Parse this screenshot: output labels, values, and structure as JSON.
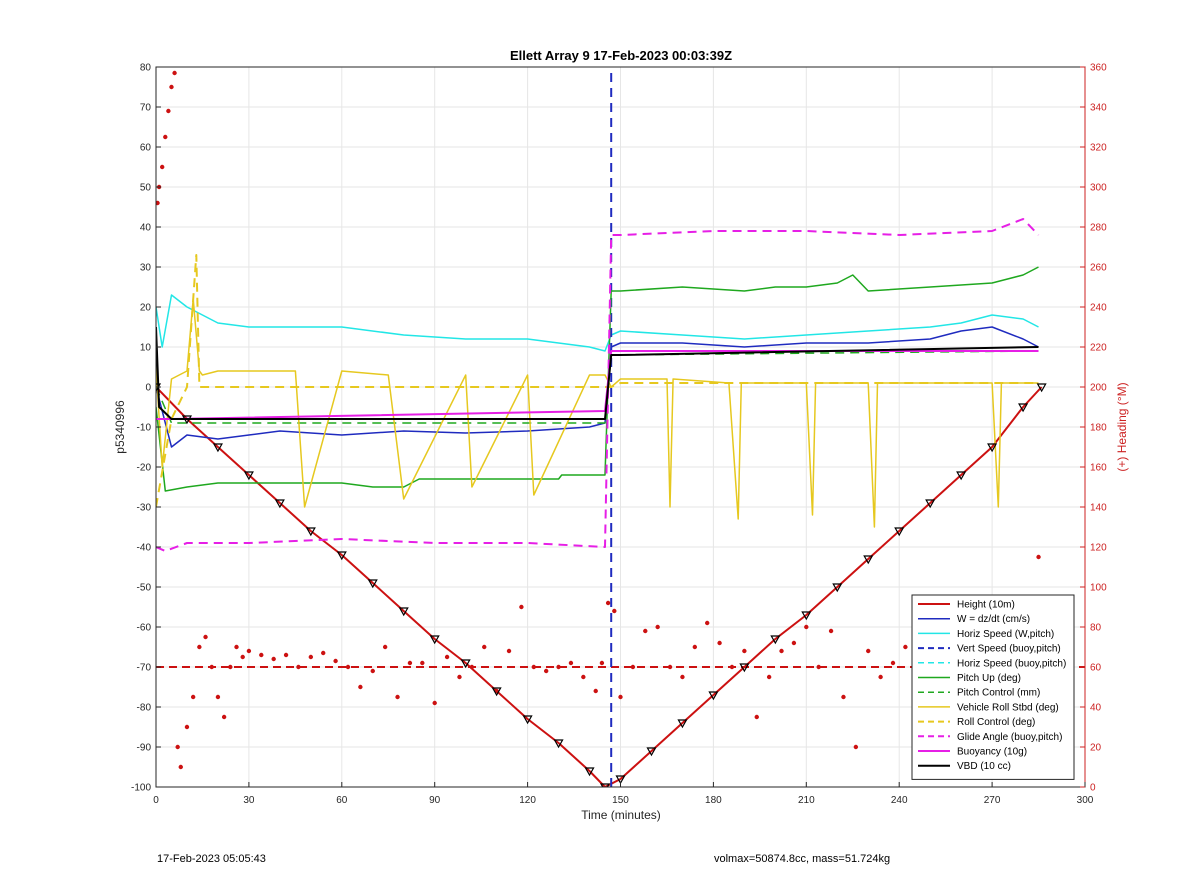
{
  "title": "Ellett Array 9 17-Feb-2023 00:03:39Z",
  "footer_left": "17-Feb-2023 05:05:43",
  "footer_right": "volmax=50874.8cc, mass=51.724kg",
  "colors": {
    "red": "#cc1111",
    "blue": "#1f2bbf",
    "cyan": "#22e6e6",
    "green": "#1fa81f",
    "yellow": "#e6c81f",
    "magenta": "#e61fe6",
    "black": "#000000"
  },
  "chart_data": {
    "type": "line",
    "title": "Ellett Array 9 17-Feb-2023 00:03:39Z",
    "xlabel": "Time (minutes)",
    "ylabel": "p5340996",
    "y2label": "(+) Heading (°M)",
    "xlim": [
      0,
      300
    ],
    "ylim": [
      -100,
      80
    ],
    "y2lim": [
      0,
      360
    ],
    "xticks": [
      0,
      30,
      60,
      90,
      120,
      150,
      180,
      210,
      240,
      270,
      300
    ],
    "yticks": [
      -100,
      -90,
      -80,
      -70,
      -60,
      -50,
      -40,
      -30,
      -20,
      -10,
      0,
      10,
      20,
      30,
      40,
      50,
      60,
      70,
      80
    ],
    "y2ticks": [
      0,
      20,
      40,
      60,
      80,
      100,
      120,
      140,
      160,
      180,
      200,
      220,
      240,
      260,
      280,
      300,
      320,
      340,
      360
    ],
    "grid": true,
    "legend_position": "bottom-right",
    "series": [
      {
        "name": "Height (10m)",
        "color": "#cc1111",
        "style": "solid",
        "width": 2,
        "x": [
          0,
          10,
          20,
          30,
          40,
          50,
          60,
          70,
          80,
          90,
          100,
          110,
          120,
          130,
          140,
          145,
          150,
          160,
          170,
          180,
          190,
          200,
          210,
          220,
          230,
          240,
          250,
          260,
          270,
          280,
          286
        ],
        "y": [
          0,
          -8,
          -15,
          -22,
          -29,
          -36,
          -42,
          -49,
          -56,
          -63,
          -69,
          -76,
          -83,
          -89,
          -96,
          -100,
          -98,
          -91,
          -84,
          -77,
          -70,
          -63,
          -57,
          -50,
          -43,
          -36,
          -29,
          -22,
          -15,
          -5,
          0
        ]
      },
      {
        "name": "W = dz/dt (cm/s)",
        "color": "#1f2bbf",
        "style": "solid",
        "width": 1.5,
        "x": [
          0,
          5,
          10,
          20,
          30,
          40,
          60,
          80,
          100,
          120,
          140,
          145,
          147,
          150,
          170,
          190,
          210,
          230,
          250,
          260,
          270,
          280,
          285
        ],
        "y": [
          0,
          -15,
          -12,
          -13,
          -12,
          -11,
          -12,
          -11,
          -11.5,
          -11,
          -10,
          -9,
          10,
          11,
          11,
          10,
          11,
          11,
          12,
          14,
          15,
          12,
          10
        ]
      },
      {
        "name": "Horiz Speed (W,pitch)",
        "color": "#22e6e6",
        "style": "solid",
        "width": 1.5,
        "x": [
          0,
          2,
          5,
          10,
          20,
          30,
          40,
          60,
          80,
          100,
          120,
          140,
          145,
          147,
          150,
          170,
          190,
          210,
          230,
          250,
          260,
          270,
          280,
          285
        ],
        "y": [
          20,
          10,
          23,
          20,
          16,
          15,
          15,
          15,
          13,
          12,
          12,
          10,
          9,
          13,
          14,
          13,
          12,
          13,
          14,
          15,
          16,
          18,
          17,
          15
        ]
      },
      {
        "name": "Vert Speed (buoy,pitch)",
        "color": "#1f2bbf",
        "style": "dashed",
        "width": 2,
        "x": [
          147,
          147
        ],
        "y": [
          -100,
          80
        ]
      },
      {
        "name": "Horiz Speed (buoy,pitch)",
        "color": "#22e6e6",
        "style": "dashed",
        "width": 1.5,
        "x": [
          0,
          1
        ],
        "y": [
          0,
          0
        ]
      },
      {
        "name": "Pitch Up (deg)",
        "color": "#1fa81f",
        "style": "solid",
        "width": 1.5,
        "x": [
          0,
          3,
          10,
          20,
          30,
          50,
          60,
          70,
          80,
          85,
          100,
          130,
          131,
          140,
          145,
          147,
          150,
          170,
          190,
          200,
          210,
          220,
          225,
          230,
          250,
          270,
          280,
          285
        ],
        "y": [
          -5,
          -26,
          -25,
          -24,
          -24,
          -24,
          -24,
          -25,
          -25,
          -23,
          -23,
          -23,
          -22,
          -22,
          -22,
          24,
          24,
          25,
          24,
          25,
          25,
          26,
          28,
          24,
          25,
          26,
          28,
          30
        ]
      },
      {
        "name": "Pitch Control (mm)",
        "color": "#1fa81f",
        "style": "dashed",
        "width": 1.5,
        "x": [
          0,
          5,
          145,
          147,
          285
        ],
        "y": [
          0,
          -9,
          -9,
          8,
          9
        ]
      },
      {
        "name": "Vehicle Roll Stbd (deg)",
        "color": "#e6c81f",
        "style": "solid",
        "width": 1.5,
        "x": [
          0,
          2,
          5,
          10,
          12,
          14,
          15,
          20,
          22,
          25,
          45,
          48,
          60,
          75,
          80,
          100,
          102,
          120,
          122,
          140,
          145,
          147,
          150,
          165,
          166,
          167,
          185,
          188,
          189,
          190,
          210,
          212,
          213,
          215,
          230,
          232,
          233,
          235,
          270,
          272,
          273,
          285
        ],
        "y": [
          5,
          -20,
          2,
          4,
          22,
          4,
          3,
          4,
          4,
          4,
          4,
          -30,
          4,
          3,
          -28,
          3,
          -25,
          3,
          -27,
          3,
          3,
          0,
          2,
          2,
          -30,
          2,
          1,
          -33,
          1,
          1,
          1,
          -32,
          1,
          1,
          1,
          -35,
          1,
          1,
          1,
          -30,
          1,
          1
        ]
      },
      {
        "name": "Roll Control (deg)",
        "color": "#e6c81f",
        "style": "dashed",
        "width": 2,
        "x": [
          0,
          5,
          10,
          13,
          14,
          20,
          30,
          60,
          90,
          120,
          145,
          147,
          150,
          200,
          250,
          285
        ],
        "y": [
          -30,
          -8,
          0,
          33,
          0,
          0,
          0,
          0,
          0,
          0,
          0,
          0,
          1,
          1,
          1,
          1
        ]
      },
      {
        "name": "Glide Angle (buoy,pitch)",
        "color": "#e61fe6",
        "style": "dashed",
        "width": 2,
        "x": [
          0,
          3,
          10,
          30,
          60,
          90,
          120,
          145,
          147,
          150,
          180,
          210,
          240,
          270,
          280,
          285
        ],
        "y": [
          -40,
          -41,
          -39,
          -39,
          -38,
          -39,
          -39,
          -40,
          38,
          38,
          39,
          39,
          38,
          39,
          42,
          38
        ]
      },
      {
        "name": "Buoyancy (10g)",
        "color": "#e61fe6",
        "style": "solid",
        "width": 2,
        "x": [
          0,
          5,
          145,
          147,
          285
        ],
        "y": [
          -8,
          -8,
          -6,
          9,
          9
        ]
      },
      {
        "name": "VBD (10 cc)",
        "color": "#000000",
        "style": "solid",
        "width": 2,
        "x": [
          0,
          1,
          5,
          145,
          147,
          150,
          285
        ],
        "y": [
          15,
          -5,
          -8,
          -8,
          8,
          8,
          10
        ]
      }
    ],
    "heading": {
      "name": "Heading (°M)",
      "color": "#cc1111",
      "axis": "right",
      "style": "dots",
      "x": [
        0.5,
        1,
        2,
        3,
        4,
        5,
        6,
        7,
        8,
        10,
        12,
        14,
        16,
        18,
        20,
        22,
        24,
        26,
        28,
        30,
        34,
        38,
        42,
        46,
        50,
        54,
        58,
        62,
        66,
        70,
        74,
        78,
        82,
        86,
        90,
        94,
        98,
        102,
        106,
        110,
        114,
        118,
        122,
        126,
        130,
        134,
        138,
        142,
        144,
        146,
        148,
        150,
        154,
        158,
        162,
        166,
        170,
        174,
        178,
        182,
        186,
        190,
        194,
        198,
        202,
        206,
        210,
        214,
        218,
        222,
        226,
        230,
        234,
        238,
        242,
        246,
        250,
        254,
        258,
        262,
        266,
        270,
        274,
        278,
        282,
        285
      ],
      "y": [
        292,
        300,
        310,
        325,
        338,
        350,
        357,
        20,
        10,
        30,
        45,
        70,
        75,
        60,
        45,
        35,
        60,
        70,
        65,
        68,
        66,
        64,
        66,
        60,
        65,
        67,
        63,
        60,
        50,
        58,
        70,
        45,
        62,
        62,
        42,
        65,
        55,
        60,
        70,
        48,
        68,
        90,
        60,
        58,
        60,
        62,
        55,
        48,
        62,
        92,
        88,
        45,
        60,
        78,
        80,
        60,
        55,
        70,
        82,
        72,
        60,
        68,
        35,
        55,
        68,
        72,
        80,
        60,
        78,
        45,
        20,
        68,
        55,
        62,
        70,
        80,
        72,
        50,
        65,
        40,
        52,
        60,
        48,
        58,
        40,
        115
      ]
    },
    "heading_reference": {
      "value": 60,
      "axis": "right",
      "style": "dashed",
      "color": "#cc1111"
    }
  }
}
